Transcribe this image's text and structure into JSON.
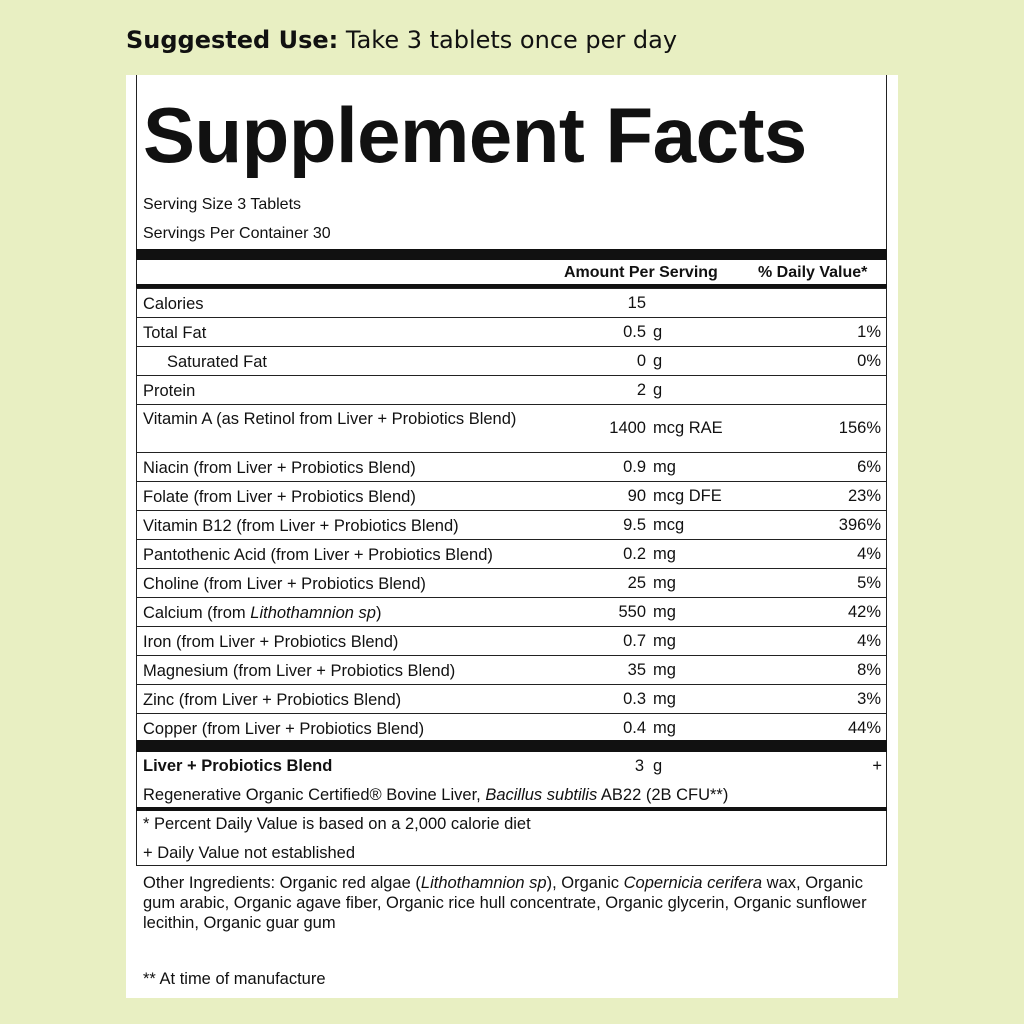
{
  "header": {
    "suggested_label": "Suggested Use:",
    "suggested_text": "Take 3 tablets once per day"
  },
  "label": {
    "title": "Supplement Facts",
    "serving_size": "Serving Size 3 Tablets",
    "servings_per_container": "Servings Per Container 30",
    "col_amount": "Amount Per Serving",
    "col_dv": "% Daily Value*",
    "rows": [
      {
        "name": "Calories",
        "amount": "15",
        "unit": "",
        "dv": ""
      },
      {
        "name": "Total Fat",
        "amount": "0.5",
        "unit": "g",
        "dv": "1%"
      },
      {
        "name": "Saturated Fat",
        "amount": "0",
        "unit": "g",
        "dv": "0%"
      },
      {
        "name": "Protein",
        "amount": "2",
        "unit": "g",
        "dv": ""
      },
      {
        "name": "Vitamin A (as Retinol from Liver + Probiotics Blend)",
        "amount": "1400",
        "unit": "mcg RAE",
        "dv": "156%"
      },
      {
        "name": "Niacin (from Liver + Probiotics Blend)",
        "amount": "0.9",
        "unit": "mg",
        "dv": "6%"
      },
      {
        "name": "Folate (from Liver + Probiotics Blend)",
        "amount": "90",
        "unit": "mcg DFE",
        "dv": "23%"
      },
      {
        "name": "Vitamin B12 (from Liver + Probiotics Blend)",
        "amount": "9.5",
        "unit": "mcg",
        "dv": "396%"
      },
      {
        "name": "Pantothenic Acid (from Liver + Probiotics Blend)",
        "amount": "0.2",
        "unit": "mg",
        "dv": "4%"
      },
      {
        "name": "Choline (from Liver + Probiotics Blend)",
        "amount": "25",
        "unit": "mg",
        "dv": "5%"
      },
      {
        "name_prefix": "Calcium (from ",
        "name_italic": "Lithothamnion sp",
        "name_suffix": ")",
        "amount": "550",
        "unit": "mg",
        "dv": "42%"
      },
      {
        "name": "Iron (from Liver + Probiotics Blend)",
        "amount": "0.7",
        "unit": "mg",
        "dv": "4%"
      },
      {
        "name": "Magnesium (from Liver + Probiotics Blend)",
        "amount": "35",
        "unit": "mg",
        "dv": "8%"
      },
      {
        "name": "Zinc (from Liver + Probiotics Blend)",
        "amount": "0.3",
        "unit": "mg",
        "dv": "3%"
      },
      {
        "name": "Copper (from Liver + Probiotics Blend)",
        "amount": "0.4",
        "unit": "mg",
        "dv": "44%"
      }
    ],
    "blend": {
      "name": "Liver + Probiotics Blend",
      "amount": "3",
      "unit": "g",
      "dv": "+",
      "desc_prefix": "Regenerative Organic Certified® Bovine Liver, ",
      "desc_italic": "Bacillus subtilis",
      "desc_suffix": " AB22 (2B CFU**)"
    },
    "footnote_dv": "* Percent Daily Value is based on a 2,000 calorie diet",
    "footnote_plus": "+ Daily Value not established"
  },
  "other": {
    "t1": "Other Ingredients: Organic red algae (",
    "i1": "Lithothamnion sp",
    "t2": "), Organic ",
    "i2": "Copernicia cerifera",
    "t3": " wax, Organic gum arabic, Organic agave fiber, Organic rice hull concentrate, Organic glycerin, Organic sunflower lecithin, Organic guar gum",
    "manufacture": "** At time of manufacture"
  }
}
